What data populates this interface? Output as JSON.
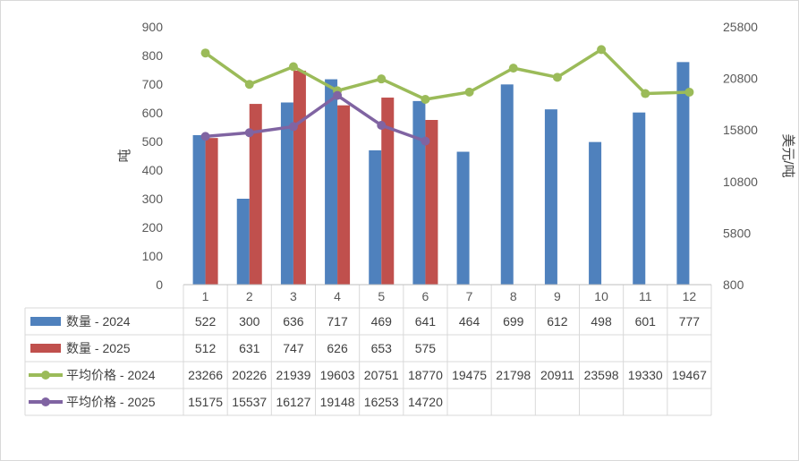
{
  "chart_data": {
    "type": "bar+line",
    "categories": [
      "1",
      "2",
      "3",
      "4",
      "5",
      "6",
      "7",
      "8",
      "9",
      "10",
      "11",
      "12"
    ],
    "y_left": {
      "label": "吨",
      "ylim": [
        0,
        900
      ],
      "ticks": [
        "0",
        "100",
        "200",
        "300",
        "400",
        "500",
        "600",
        "700",
        "800",
        "900"
      ]
    },
    "y_right": {
      "label": "美元/吨",
      "ylim": [
        800,
        25800
      ],
      "ticks": [
        "800",
        "5800",
        "10800",
        "15800",
        "20800",
        "25800"
      ]
    },
    "grid": false,
    "legend": "data-table",
    "series": [
      {
        "name": "数量 - 2024",
        "type": "bar",
        "axis": "left",
        "color": "#4f81bd",
        "values": [
          522,
          300,
          636,
          717,
          469,
          641,
          464,
          699,
          612,
          498,
          601,
          777
        ]
      },
      {
        "name": "数量 - 2025",
        "type": "bar",
        "axis": "left",
        "color": "#c0504d",
        "values": [
          512,
          631,
          747,
          626,
          653,
          575,
          null,
          null,
          null,
          null,
          null,
          null
        ]
      },
      {
        "name": "平均价格 - 2024",
        "type": "line",
        "axis": "right",
        "color": "#9bbb59",
        "values": [
          23266,
          20226,
          21939,
          19603,
          20751,
          18770,
          19475,
          21798,
          20911,
          23598,
          19330,
          19467
        ]
      },
      {
        "name": "平均价格 - 2025",
        "type": "line",
        "axis": "right",
        "color": "#8064a2",
        "values": [
          15175,
          15537,
          16127,
          19148,
          16253,
          14720,
          null,
          null,
          null,
          null,
          null,
          null
        ]
      }
    ]
  }
}
